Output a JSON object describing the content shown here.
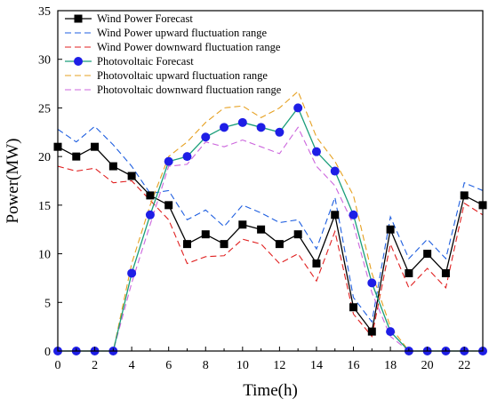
{
  "chart_data": {
    "type": "line",
    "xlabel": "Time(h)",
    "ylabel": "Power(MW)",
    "xlim": [
      0,
      23
    ],
    "ylim": [
      0,
      35
    ],
    "xticks": [
      0,
      2,
      4,
      6,
      8,
      10,
      12,
      14,
      16,
      18,
      20,
      22
    ],
    "yticks": [
      0,
      5,
      10,
      15,
      20,
      25,
      30,
      35
    ],
    "legend_position": "top-left",
    "grid": false,
    "x": [
      0,
      1,
      2,
      3,
      4,
      5,
      6,
      7,
      8,
      9,
      10,
      11,
      12,
      13,
      14,
      15,
      16,
      17,
      18,
      19,
      20,
      21,
      22,
      23
    ],
    "series": [
      {
        "name": "Wind Power Forecast",
        "color": "#000000",
        "style": "solid",
        "marker": "square",
        "values": [
          21,
          20,
          21,
          19,
          18,
          16,
          15,
          11,
          12,
          11,
          13,
          12.5,
          11,
          12,
          9,
          14,
          4.5,
          2,
          12.5,
          8,
          10,
          8,
          16,
          15
        ]
      },
      {
        "name": "Wind Power upward fluctuation range",
        "color": "#1f5fe0",
        "style": "dashed",
        "marker": "none",
        "values": [
          22.8,
          21.5,
          23.1,
          21.2,
          19,
          16.2,
          16.5,
          13.5,
          14.5,
          12.8,
          15,
          14.2,
          13.2,
          13.5,
          10.5,
          15.8,
          5.5,
          3,
          13.8,
          9.5,
          11.5,
          9.5,
          17.3,
          16.5
        ]
      },
      {
        "name": "Wind Power downward fluctuation range",
        "color": "#e02020",
        "style": "dashed",
        "marker": "none",
        "values": [
          19,
          18.5,
          18.8,
          17.3,
          17.5,
          15.5,
          13.5,
          9,
          9.7,
          9.8,
          11.5,
          11,
          9,
          10,
          7.2,
          12.3,
          3.8,
          1.5,
          11,
          6.5,
          8.5,
          6.5,
          15.2,
          14
        ]
      },
      {
        "name": "Photovoltaic Forecast",
        "color": "#1a9e7a",
        "style": "solid",
        "marker": "circle",
        "marker_color": "#1e1ee6",
        "values": [
          0,
          0,
          0,
          0,
          8,
          14,
          19.5,
          20,
          22,
          23,
          23.5,
          23,
          22.5,
          25,
          20.5,
          18.5,
          14,
          7,
          2,
          0,
          0,
          0,
          0,
          0
        ]
      },
      {
        "name": "Photovoltaic upward fluctuation range",
        "color": "#e6a020",
        "style": "dashed",
        "marker": "none",
        "values": [
          0,
          0,
          0,
          0,
          9,
          15,
          20,
          21.5,
          23.5,
          25,
          25.2,
          24,
          25,
          26.7,
          22,
          19.5,
          16,
          8,
          2.5,
          0,
          0,
          0,
          0,
          0
        ]
      },
      {
        "name": "Photovoltaic downward fluctuation range",
        "color": "#cc66dd",
        "style": "dashed",
        "marker": "none",
        "values": [
          0,
          0,
          0,
          0,
          7,
          13,
          19,
          19.2,
          21.5,
          21,
          21.7,
          21,
          20.3,
          23,
          19,
          17,
          13,
          6,
          1.5,
          0,
          0,
          0,
          0,
          0
        ]
      }
    ]
  }
}
